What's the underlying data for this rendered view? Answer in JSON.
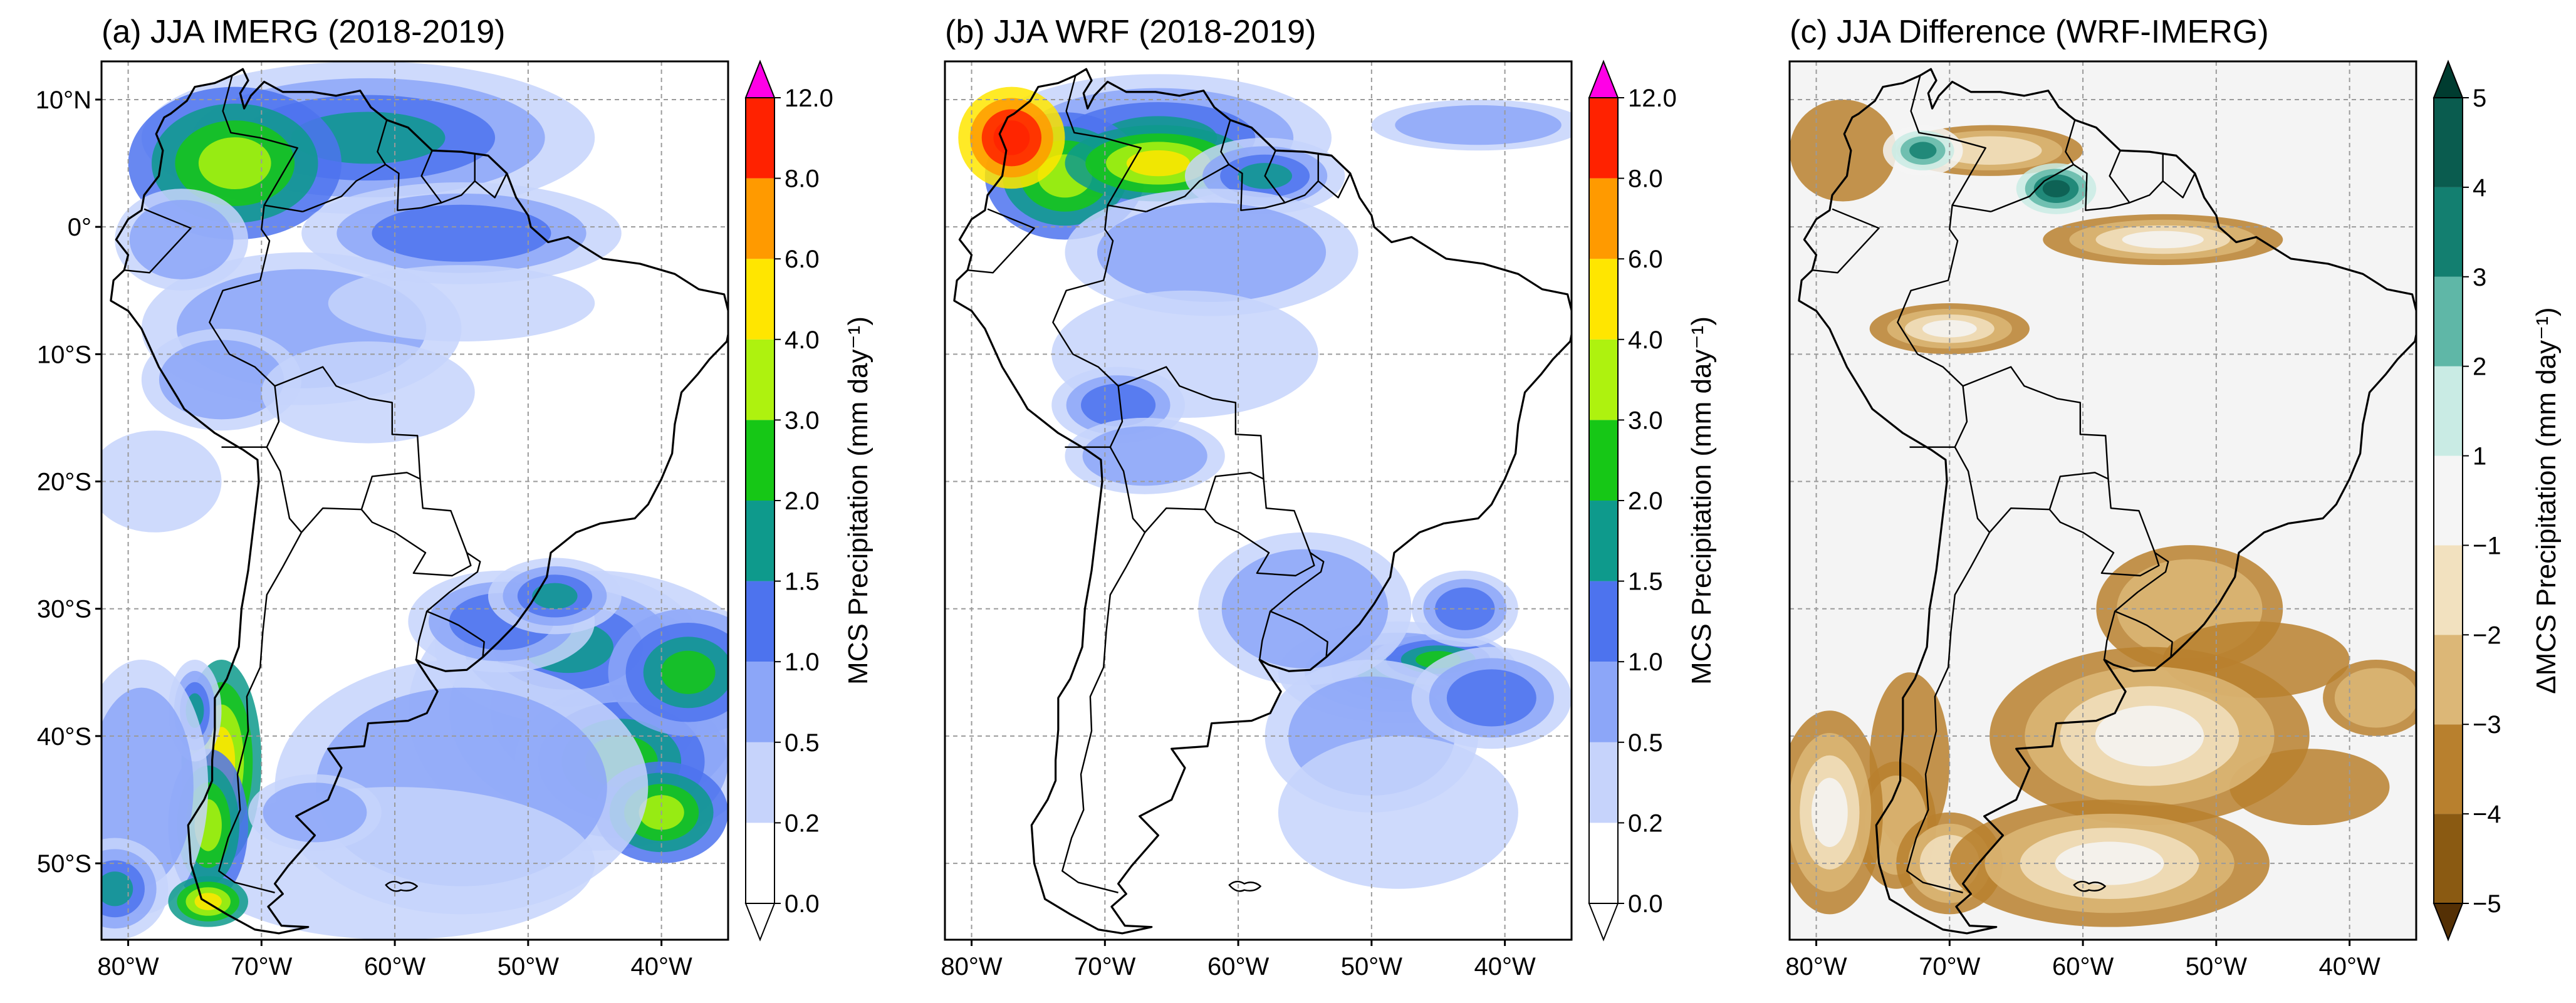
{
  "panels": [
    {
      "id": "a",
      "title": "(a) JJA IMERG (2018-2019)",
      "colorbar": {
        "label": "MCS Precipitation (mm day⁻¹)",
        "ticks": [
          "0.0",
          "0.2",
          "0.5",
          "1.0",
          "1.5",
          "2.0",
          "3.0",
          "4.0",
          "6.0",
          "8.0",
          "12.0"
        ],
        "colors": [
          "#ffffff",
          "#c6d3fb",
          "#8ca6f8",
          "#4d73ee",
          "#0e9a8c",
          "#16c716",
          "#aef20f",
          "#ffe600",
          "#ff9a00",
          "#ff2200"
        ],
        "extend_top_color": "#ff00e6"
      }
    },
    {
      "id": "b",
      "title": "(b) JJA WRF (2018-2019)",
      "colorbar": {
        "label": "MCS Precipitation (mm day⁻¹)",
        "ticks": [
          "0.0",
          "0.2",
          "0.5",
          "1.0",
          "1.5",
          "2.0",
          "3.0",
          "4.0",
          "6.0",
          "8.0",
          "12.0"
        ],
        "colors": [
          "#ffffff",
          "#c6d3fb",
          "#8ca6f8",
          "#4d73ee",
          "#0e9a8c",
          "#16c716",
          "#aef20f",
          "#ffe600",
          "#ff9a00",
          "#ff2200"
        ],
        "extend_top_color": "#ff00e6"
      }
    },
    {
      "id": "c",
      "title": "(c) JJA Difference (WRF-IMERG)",
      "colorbar": {
        "label": "ΔMCS Precipitation (mm day⁻¹)",
        "ticks": [
          "−5",
          "−4",
          "−3",
          "−2",
          "−1",
          "1",
          "2",
          "3",
          "4",
          "5"
        ],
        "colors": [
          "#8a5a12",
          "#b8802e",
          "#dcb777",
          "#f2e1bf",
          "#f5f5f5",
          "#c9ebe4",
          "#5fb7a7",
          "#137f70",
          "#0a5c4f"
        ],
        "extend_bottom_color": "#543005",
        "extend_top_color": "#003c30"
      }
    }
  ],
  "axes": {
    "lon_labels": [
      "80°W",
      "70°W",
      "60°W",
      "50°W",
      "40°W"
    ],
    "lat_labels": [
      "10°N",
      "0°",
      "10°S",
      "20°S",
      "30°S",
      "40°S",
      "50°S"
    ],
    "lon_values": [
      -80,
      -70,
      -60,
      -50,
      -40
    ],
    "lat_values": [
      10,
      0,
      -10,
      -20,
      -30,
      -40,
      -50
    ],
    "lon_range": [
      -82,
      -35
    ],
    "lat_range": [
      -56,
      13
    ]
  }
}
